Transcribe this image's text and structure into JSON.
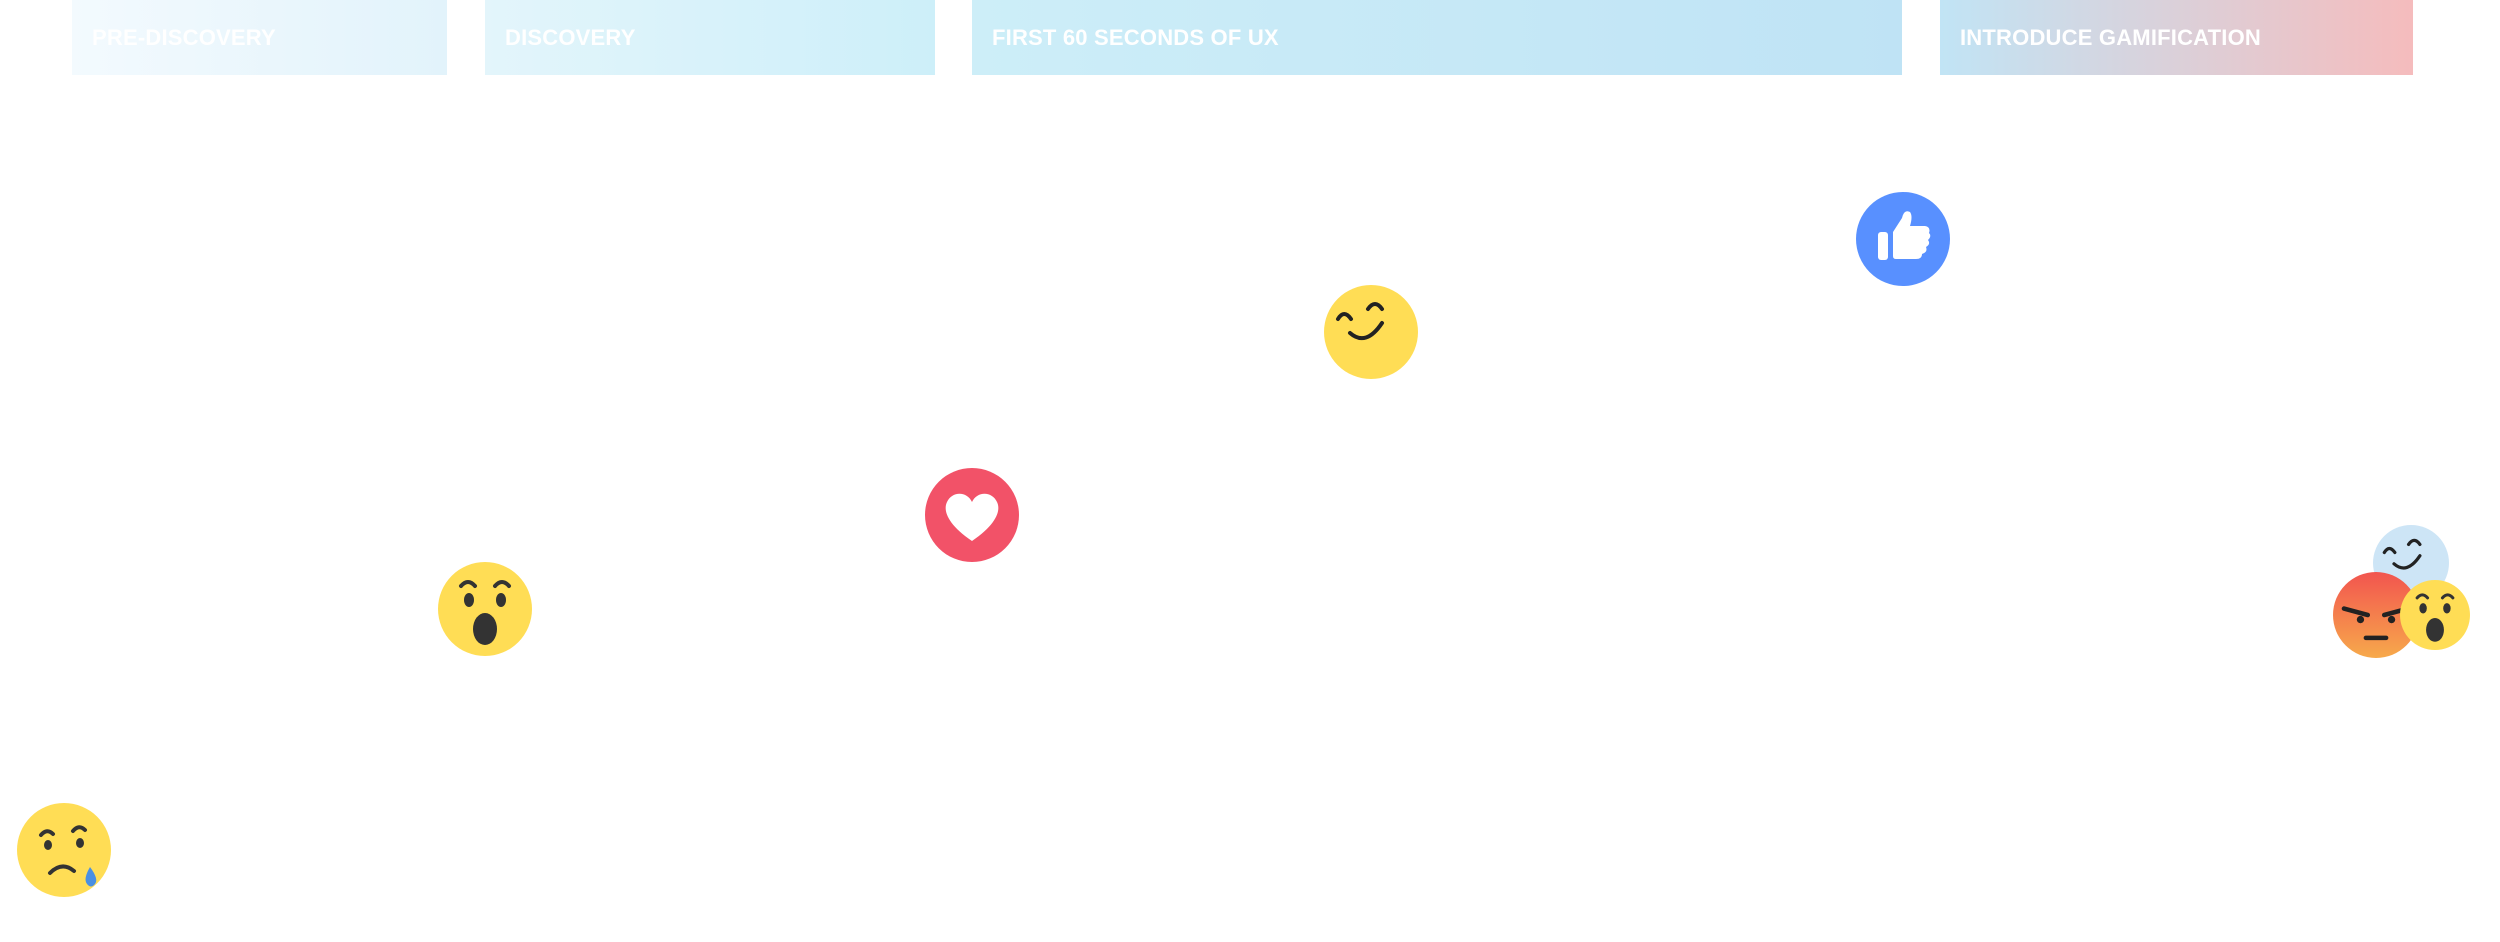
{
  "stages": [
    {
      "label": "PRE-DISCOVERY"
    },
    {
      "label": "DISCOVERY"
    },
    {
      "label": "FIRST 60 SECONDS OF UX"
    },
    {
      "label": "INTRODUCE GAMIFICATION"
    }
  ],
  "reactions": [
    {
      "icon": "sad-tear-emoji-icon"
    },
    {
      "icon": "wow-emoji-icon"
    },
    {
      "icon": "heart-reaction-icon"
    },
    {
      "icon": "smiling-emoji-icon"
    },
    {
      "icon": "thumbs-up-reaction-icon"
    },
    {
      "icon": "faded-smiling-emoji-icon"
    },
    {
      "icon": "angry-emoji-icon"
    },
    {
      "icon": "wow-emoji-icon"
    }
  ],
  "colors": {
    "yellow": "#FFDD55",
    "heart_red": "#F25268",
    "like_blue": "#5890FF",
    "angry_top": "#F2554F",
    "angry_bottom": "#F7A94B",
    "tear_blue": "#4A90E2",
    "faded_blue": "#CDE5F6"
  }
}
